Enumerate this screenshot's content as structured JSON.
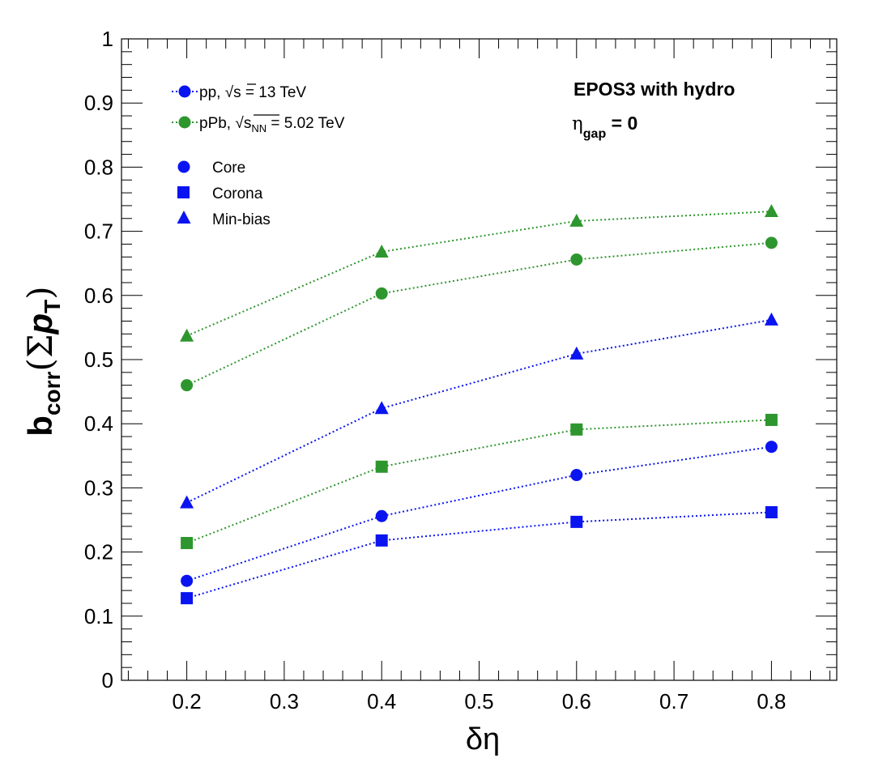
{
  "chart_data": {
    "type": "line",
    "xlabel": "δη",
    "ylabel": {
      "b": "b",
      "sub": "corr",
      "paren_open": "(Σ",
      "p": "p",
      "p_sub": "T",
      "paren_close": ")"
    },
    "xlim": [
      0.133,
      0.867
    ],
    "ylim": [
      0,
      1
    ],
    "x_ticks": [
      {
        "v": 0.2,
        "label": "0.2"
      },
      {
        "v": 0.3,
        "label": "0.3"
      },
      {
        "v": 0.4,
        "label": "0.4"
      },
      {
        "v": 0.5,
        "label": "0.5"
      },
      {
        "v": 0.6,
        "label": "0.6"
      },
      {
        "v": 0.7,
        "label": "0.7"
      },
      {
        "v": 0.8,
        "label": "0.8"
      }
    ],
    "y_ticks": [
      {
        "v": 0,
        "label": "0"
      },
      {
        "v": 0.1,
        "label": "0.1"
      },
      {
        "v": 0.2,
        "label": "0.2"
      },
      {
        "v": 0.3,
        "label": "0.3"
      },
      {
        "v": 0.4,
        "label": "0.4"
      },
      {
        "v": 0.5,
        "label": "0.5"
      },
      {
        "v": 0.6,
        "label": "0.6"
      },
      {
        "v": 0.7,
        "label": "0.7"
      },
      {
        "v": 0.8,
        "label": "0.8"
      },
      {
        "v": 0.9,
        "label": "0.9"
      },
      {
        "v": 1,
        "label": "1"
      }
    ],
    "x": [
      0.2,
      0.4,
      0.6,
      0.8
    ],
    "series": [
      {
        "name": "pp Core",
        "system": "pp",
        "marker": "circle",
        "color": "#0a14f0",
        "values": [
          0.155,
          0.256,
          0.32,
          0.364
        ]
      },
      {
        "name": "pp Corona",
        "system": "pp",
        "marker": "square",
        "color": "#0a14f0",
        "values": [
          0.128,
          0.218,
          0.247,
          0.262
        ]
      },
      {
        "name": "pp Min-bias",
        "system": "pp",
        "marker": "triangle",
        "color": "#0a14f0",
        "values": [
          0.277,
          0.424,
          0.509,
          0.562
        ]
      },
      {
        "name": "pPb Core",
        "system": "pPb",
        "marker": "circle",
        "color": "#2e962e",
        "values": [
          0.46,
          0.603,
          0.656,
          0.682
        ]
      },
      {
        "name": "pPb Corona",
        "system": "pPb",
        "marker": "square",
        "color": "#2e962e",
        "values": [
          0.214,
          0.333,
          0.391,
          0.406
        ]
      },
      {
        "name": "pPb Min-bias",
        "system": "pPb",
        "marker": "triangle",
        "color": "#2e962e",
        "values": [
          0.537,
          0.668,
          0.716,
          0.731
        ]
      }
    ],
    "legend": {
      "systems": [
        {
          "label": "pp, ",
          "sqrt": "s",
          "sqrt_sub": "",
          "tail": " = 13 TeV",
          "color": "#0a14f0"
        },
        {
          "label": "pPb, ",
          "sqrt": "s",
          "sqrt_sub": "NN",
          "tail": " = 5.02 TeV",
          "color": "#2e962e"
        }
      ],
      "markers": [
        {
          "label": "Core",
          "marker": "circle"
        },
        {
          "label": "Corona",
          "marker": "square"
        },
        {
          "label": "Min-bias",
          "marker": "triangle"
        }
      ],
      "marker_color": "#0a14f0"
    },
    "annotations": {
      "title": "EPOS3 with hydro",
      "eta_symbol": "η",
      "eta_sub": "gap",
      "eta_value": " = 0"
    }
  }
}
